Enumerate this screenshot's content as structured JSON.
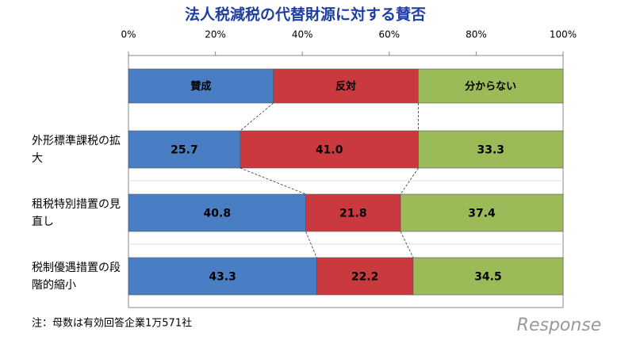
{
  "chart_data": {
    "type": "stacked-barh",
    "title": "法人税減税の代替財源に対する賛否",
    "note": "注：母数は有効回答企業1万571社",
    "categories": [
      "外形標準課税の拡大",
      "租税特別措置の見直し",
      "税制優遇措置の段階的縮小"
    ],
    "series": [
      {
        "name": "賛成",
        "color": "#4a7ec4",
        "values": [
          25.7,
          40.8,
          43.3
        ],
        "value_labels": [
          "25.7",
          "40.8",
          "43.3"
        ]
      },
      {
        "name": "反対",
        "color": "#c9393d",
        "values": [
          41,
          21.8,
          22.2
        ],
        "value_labels": [
          "41.0",
          "21.8",
          "22.2"
        ]
      },
      {
        "name": "分からない",
        "color": "#9bbb59",
        "values": [
          33.3,
          37.4,
          34.5
        ],
        "value_labels": [
          "33.3",
          "37.4",
          "34.5"
        ]
      }
    ],
    "xlim": [
      0,
      100
    ],
    "xticks": [
      {
        "value": 0,
        "label": "0%"
      },
      {
        "value": 20,
        "label": "20%"
      },
      {
        "value": 40,
        "label": "40%"
      },
      {
        "value": 60,
        "label": "60%"
      },
      {
        "value": 80,
        "label": "80%"
      },
      {
        "value": 100,
        "label": "100%"
      }
    ]
  },
  "logo": "Response"
}
